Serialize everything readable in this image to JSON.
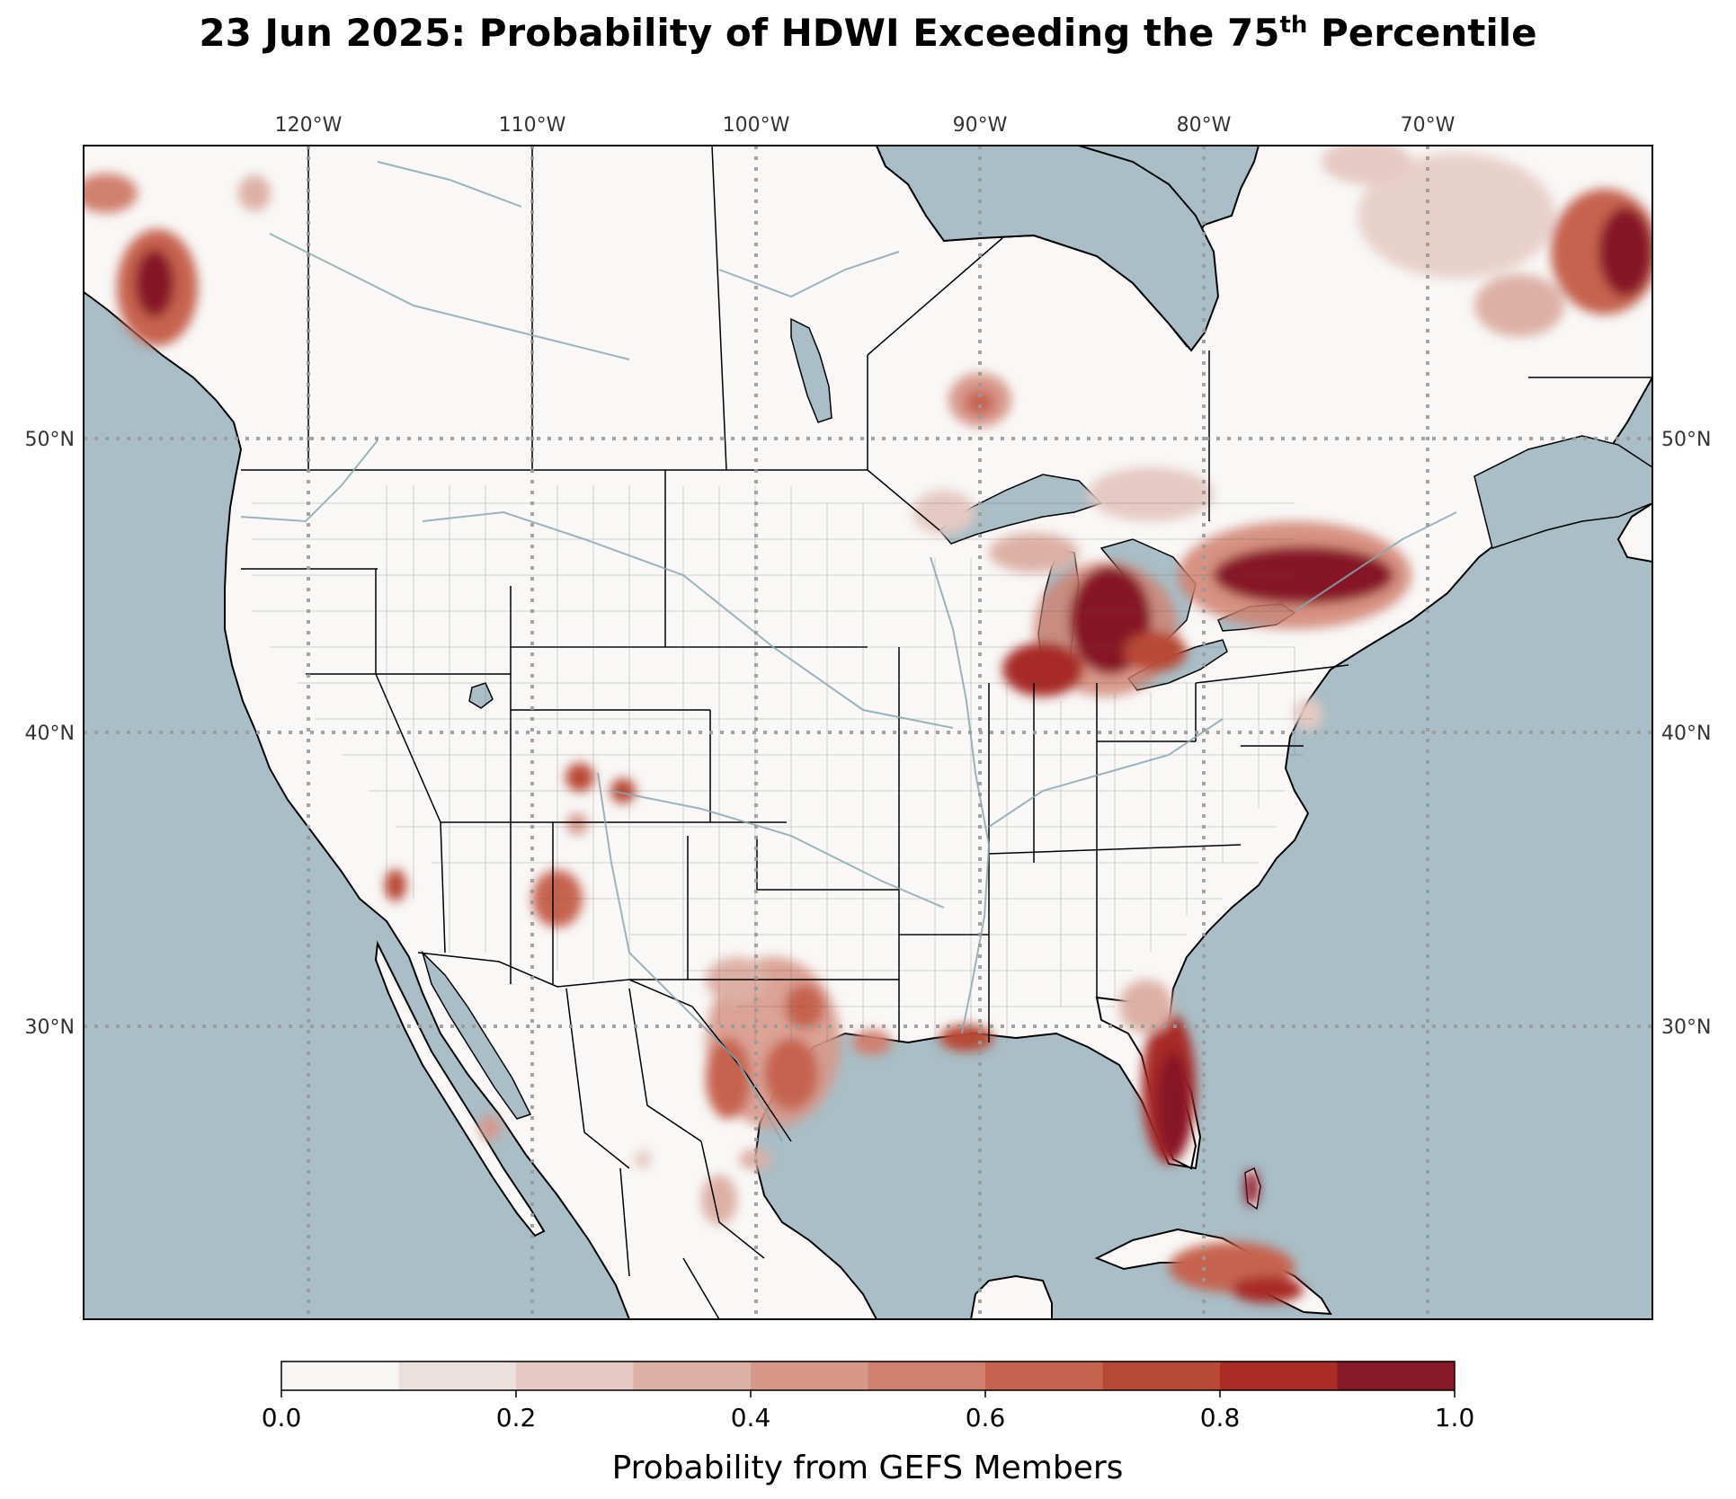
{
  "title": {
    "main": "23 Jun 2025: Probability of HDWI Exceeding the 75",
    "sup": "th",
    "tail": " Percentile"
  },
  "map": {
    "longitude_labels": [
      "120°W",
      "110°W",
      "100°W",
      "90°W",
      "80°W",
      "70°W"
    ],
    "latitude_labels_left": [
      "50°N",
      "40°N",
      "30°N"
    ],
    "latitude_labels_right": [
      "50°N",
      "40°N",
      "30°N"
    ],
    "colors": {
      "ocean": "#a9bec6",
      "land": "#f9f8f7",
      "borders": "#000000",
      "lakes": "#a9bec6",
      "gridlines": "#9a9a9a"
    }
  },
  "colorbar": {
    "label": "Probability from GEFS Members",
    "ticks": [
      "0.0",
      "0.2",
      "0.4",
      "0.6",
      "0.8",
      "1.0"
    ],
    "levels": [
      0.0,
      0.1,
      0.2,
      0.3,
      0.4,
      0.5,
      0.6,
      0.7,
      0.8,
      0.9,
      1.0
    ],
    "colors": [
      "#f8f6f5",
      "#ece0de",
      "#e5c9c2",
      "#ddb0a5",
      "#d7988a",
      "#d0806e",
      "#c66450",
      "#b84836",
      "#a82b26",
      "#861827"
    ]
  }
}
